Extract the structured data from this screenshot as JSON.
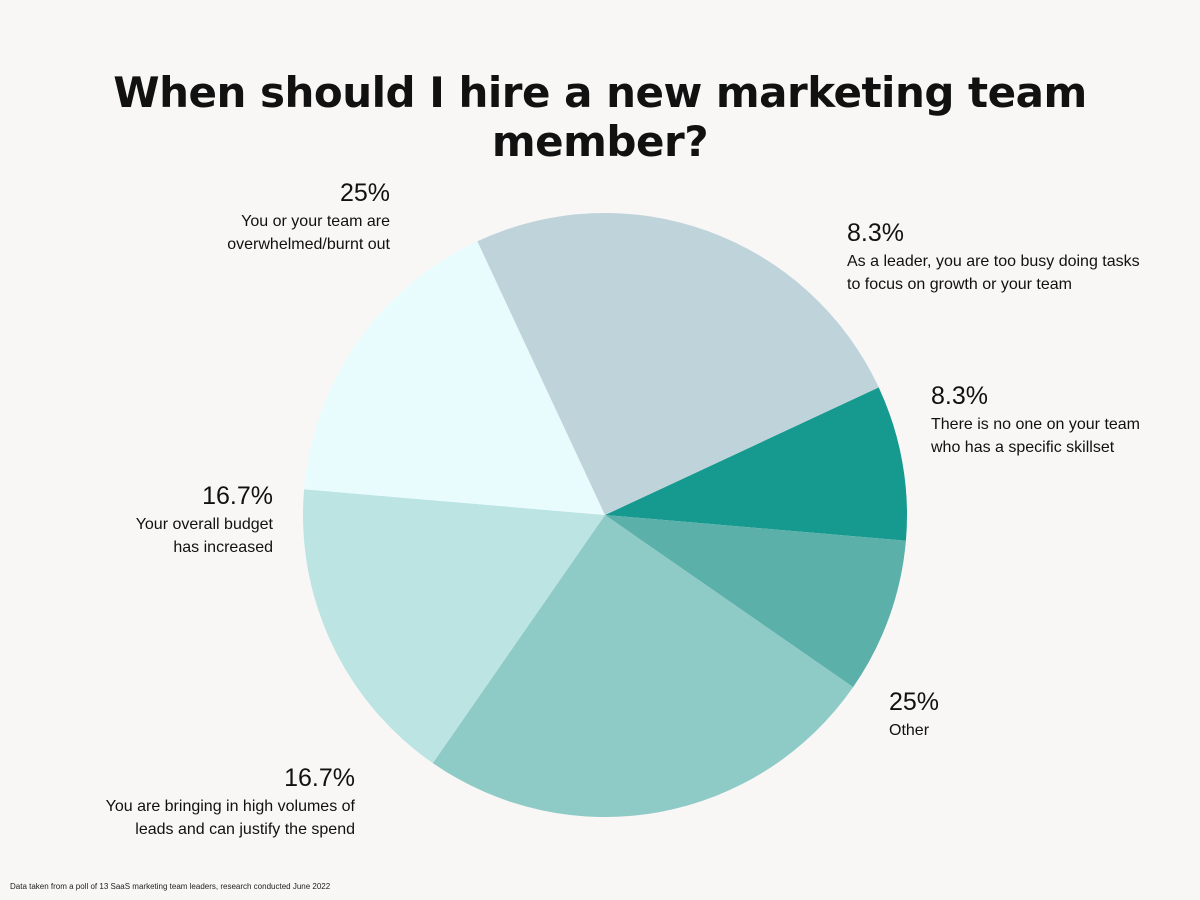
{
  "chart_data": {
    "type": "pie",
    "title": "When should I hire a new marketing team member?",
    "slices": [
      {
        "pct_label": "8.3%",
        "label": "As a leader, you are too busy doing tasks to focus on growth or your team",
        "value": 8.3,
        "color": "#16998e"
      },
      {
        "pct_label": "8.3%",
        "label": "There is no one on your team who has a specific skillset",
        "value": 8.3,
        "color": "#5bb1aa"
      },
      {
        "pct_label": "25%",
        "label": "Other",
        "value": 25,
        "color": "#8ecac6"
      },
      {
        "pct_label": "16.7%",
        "label": "You are bringing in high volumes of leads and can justify the spend",
        "value": 16.7,
        "color": "#bbe4e3"
      },
      {
        "pct_label": "16.7%",
        "label": "Your overall budget has increased",
        "value": 16.7,
        "color": "#e8fcfd"
      },
      {
        "pct_label": "25%",
        "label": "You or your team are overwhelmed/burnt out",
        "value": 25,
        "color": "#bfd3da"
      }
    ],
    "legend": "none"
  },
  "footnote": "Data taken from a poll of 13 SaaS marketing team leaders, research conducted June 2022"
}
